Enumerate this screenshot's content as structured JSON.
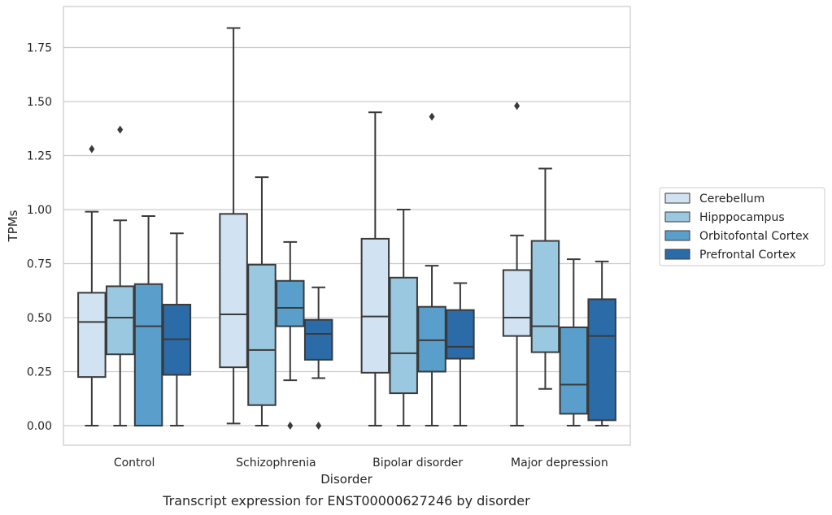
{
  "chart_data": {
    "type": "boxplot",
    "xlabel": "Disorder",
    "ylabel": "TPMs",
    "caption": "Transcript expression for ENST00000627246 by disorder",
    "ylim": [
      -0.09,
      1.9
    ],
    "yticks": [
      0.0,
      0.25,
      0.5,
      0.75,
      1.0,
      1.25,
      1.5,
      1.75
    ],
    "ytick_labels": [
      "0.00",
      "0.25",
      "0.50",
      "0.75",
      "1.00",
      "1.25",
      "1.50",
      "1.75"
    ],
    "grid": true,
    "legend_position": "right",
    "categories": [
      "Control",
      "Schizophrenia",
      "Bipolar disorder",
      "Major depression"
    ],
    "series": [
      {
        "name": "Cerebellum",
        "color": "#d1e2f2",
        "boxes": [
          {
            "whislo": 0.0,
            "q1": 0.225,
            "med": 0.48,
            "q3": 0.615,
            "whishi": 0.99,
            "fliers": [
              1.28
            ]
          },
          {
            "whislo": 0.01,
            "q1": 0.27,
            "med": 0.515,
            "q3": 0.98,
            "whishi": 1.84,
            "fliers": []
          },
          {
            "whislo": 0.0,
            "q1": 0.245,
            "med": 0.505,
            "q3": 0.865,
            "whishi": 1.45,
            "fliers": []
          },
          {
            "whislo": 0.0,
            "q1": 0.415,
            "med": 0.5,
            "q3": 0.72,
            "whishi": 0.88,
            "fliers": [
              1.48
            ]
          }
        ]
      },
      {
        "name": "Hipppocampus",
        "color": "#9ac8e0",
        "boxes": [
          {
            "whislo": 0.0,
            "q1": 0.33,
            "med": 0.5,
            "q3": 0.645,
            "whishi": 0.95,
            "fliers": [
              1.37
            ]
          },
          {
            "whislo": 0.0,
            "q1": 0.095,
            "med": 0.35,
            "q3": 0.745,
            "whishi": 1.15,
            "fliers": []
          },
          {
            "whislo": 0.0,
            "q1": 0.15,
            "med": 0.335,
            "q3": 0.685,
            "whishi": 1.0,
            "fliers": []
          },
          {
            "whislo": 0.17,
            "q1": 0.34,
            "med": 0.46,
            "q3": 0.855,
            "whishi": 1.19,
            "fliers": []
          }
        ]
      },
      {
        "name": "Orbitofontal Cortex",
        "color": "#5a9ecb",
        "boxes": [
          {
            "whislo": 0.0,
            "q1": 0.0,
            "med": 0.46,
            "q3": 0.655,
            "whishi": 0.97,
            "fliers": []
          },
          {
            "whislo": 0.21,
            "q1": 0.46,
            "med": 0.545,
            "q3": 0.67,
            "whishi": 0.85,
            "fliers": [
              0.0
            ]
          },
          {
            "whislo": 0.0,
            "q1": 0.25,
            "med": 0.395,
            "q3": 0.55,
            "whishi": 0.74,
            "fliers": [
              1.43
            ]
          },
          {
            "whislo": 0.0,
            "q1": 0.055,
            "med": 0.19,
            "q3": 0.455,
            "whishi": 0.77,
            "fliers": []
          }
        ]
      },
      {
        "name": "Prefrontal Cortex",
        "color": "#2b6ca8",
        "boxes": [
          {
            "whislo": 0.0,
            "q1": 0.235,
            "med": 0.4,
            "q3": 0.56,
            "whishi": 0.89,
            "fliers": []
          },
          {
            "whislo": 0.22,
            "q1": 0.305,
            "med": 0.425,
            "q3": 0.49,
            "whishi": 0.64,
            "fliers": [
              0.0
            ]
          },
          {
            "whislo": 0.0,
            "q1": 0.31,
            "med": 0.365,
            "q3": 0.535,
            "whishi": 0.66,
            "fliers": []
          },
          {
            "whislo": 0.0,
            "q1": 0.025,
            "med": 0.415,
            "q3": 0.585,
            "whishi": 0.76,
            "fliers": []
          }
        ]
      }
    ]
  }
}
